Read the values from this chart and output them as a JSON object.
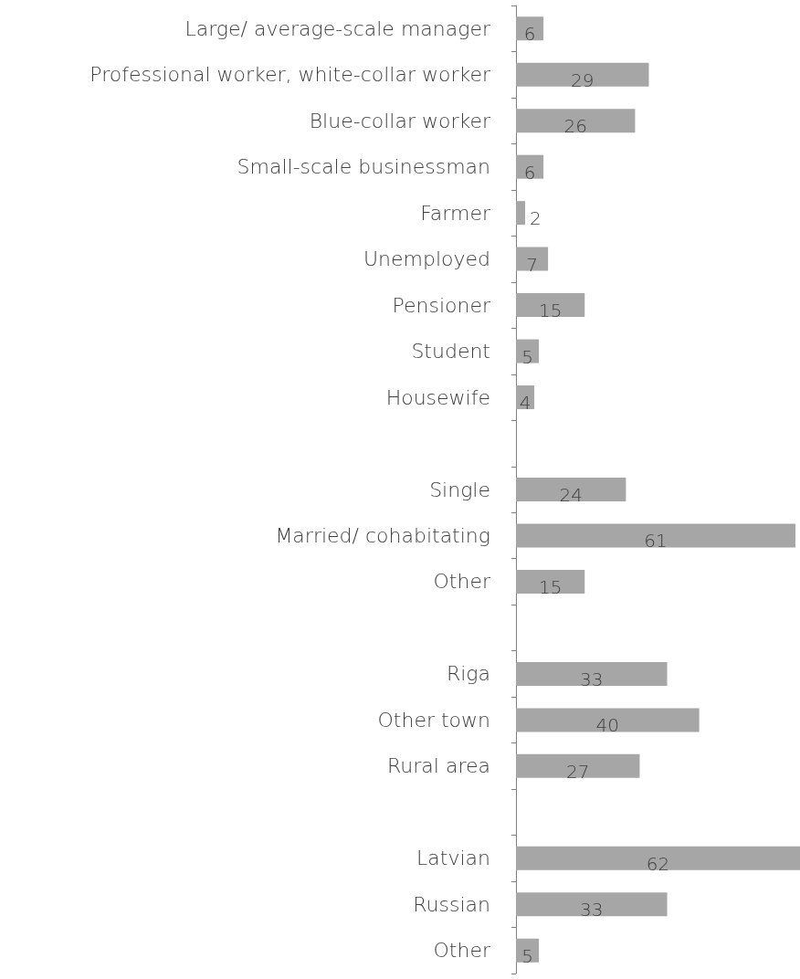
{
  "chart_data": {
    "type": "bar",
    "orientation": "horizontal",
    "data_labels": true,
    "color": "#a6a6a6",
    "categories": [
      "Large/ average-scale manager",
      "Professional worker, white-collar worker",
      "Blue-collar worker",
      "Small-scale businessman",
      "Farmer",
      "Unemployed",
      "Pensioner",
      "Student",
      "Housewife",
      null,
      "Single",
      "Married/ cohabitating",
      "Other",
      null,
      "Riga",
      "Other town",
      "Rural area",
      null,
      "Latvian",
      "Russian",
      "Other"
    ],
    "values": [
      6,
      29,
      26,
      6,
      2,
      7,
      15,
      5,
      4,
      null,
      24,
      61,
      15,
      null,
      33,
      40,
      27,
      null,
      62,
      33,
      5
    ]
  }
}
